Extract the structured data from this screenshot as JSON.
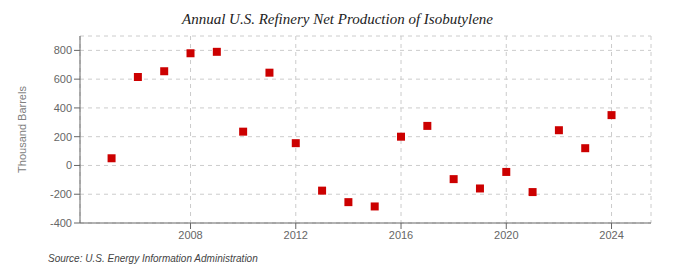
{
  "chart_data": {
    "type": "scatter",
    "title": "Annual U.S. Refinery Net Production of Isobutylene",
    "y_label": "Thousand Barrels",
    "annotations": [
      "Source: U.S. Energy Information Administration"
    ],
    "x": [
      2005,
      2006,
      2007,
      2008,
      2009,
      2010,
      2011,
      2012,
      2013,
      2014,
      2015,
      2016,
      2017,
      2018,
      2019,
      2020,
      2021,
      2022,
      2023,
      2024
    ],
    "values": [
      50,
      615,
      655,
      780,
      790,
      235,
      645,
      155,
      -175,
      -255,
      -285,
      200,
      275,
      -95,
      -160,
      -45,
      -185,
      245,
      120,
      350
    ],
    "color": "#cc0000",
    "marker": "square",
    "xlim": [
      2003.8,
      2025.5
    ],
    "xticks": [
      2008,
      2012,
      2016,
      2020,
      2024
    ],
    "ylim": [
      -400,
      900
    ],
    "yticks": [
      -400,
      -200,
      0,
      200,
      400,
      600,
      800
    ],
    "grid": true
  }
}
